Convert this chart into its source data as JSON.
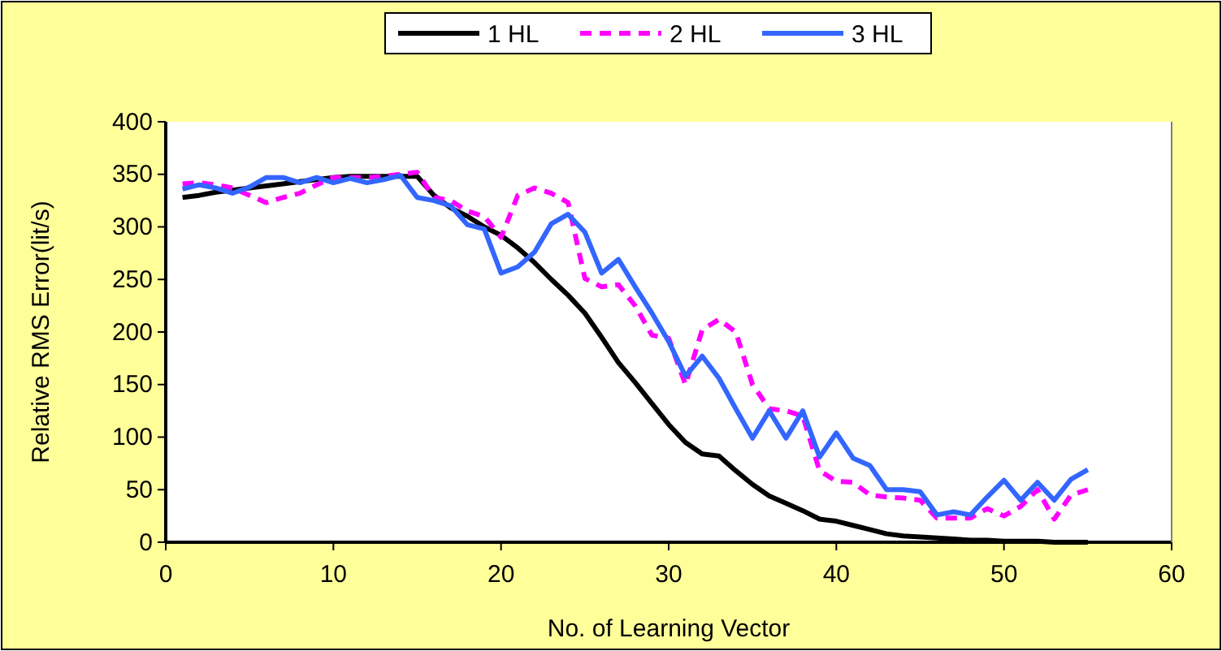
{
  "chart_data": {
    "type": "line",
    "xlabel": "No. of Learning Vector",
    "ylabel": "Relative RMS Error(lit/s)",
    "x": [
      1,
      2,
      3,
      4,
      5,
      6,
      7,
      8,
      9,
      10,
      11,
      12,
      13,
      14,
      15,
      16,
      17,
      18,
      19,
      20,
      21,
      22,
      23,
      24,
      25,
      26,
      27,
      28,
      29,
      30,
      31,
      32,
      33,
      34,
      35,
      36,
      37,
      38,
      39,
      40,
      41,
      42,
      43,
      44,
      45,
      46,
      47,
      48,
      49,
      50,
      51,
      52,
      53,
      54,
      55
    ],
    "series": [
      {
        "name": "1 HL",
        "color": "#000000",
        "line_style": "solid",
        "values": [
          328,
          330,
          333,
          335,
          337,
          339,
          341,
          343,
          345,
          347,
          348,
          348,
          348,
          348,
          348,
          330,
          318,
          310,
          300,
          292,
          280,
          266,
          250,
          235,
          218,
          195,
          171,
          152,
          132,
          112,
          95,
          84,
          82,
          68,
          55,
          44,
          37,
          30,
          22,
          20,
          16,
          12,
          8,
          6,
          5,
          4,
          3,
          2,
          2,
          1,
          1,
          1,
          0,
          0,
          0
        ]
      },
      {
        "name": "2 HL",
        "color": "#ff00ff",
        "line_style": "dashed",
        "values": [
          341,
          342,
          340,
          337,
          330,
          323,
          328,
          332,
          340,
          347,
          347,
          347,
          348,
          350,
          352,
          328,
          325,
          315,
          310,
          290,
          330,
          337,
          332,
          323,
          251,
          243,
          245,
          225,
          197,
          194,
          150,
          202,
          212,
          200,
          150,
          127,
          125,
          120,
          68,
          58,
          57,
          45,
          43,
          42,
          40,
          23,
          23,
          23,
          32,
          25,
          34,
          50,
          22,
          45,
          50
        ]
      },
      {
        "name": "3 HL",
        "color": "#3366ff",
        "line_style": "solid",
        "values": [
          336,
          340,
          337,
          332,
          338,
          347,
          347,
          342,
          347,
          342,
          346,
          342,
          345,
          349,
          328,
          325,
          320,
          302,
          298,
          256,
          262,
          276,
          303,
          312,
          295,
          256,
          269,
          243,
          218,
          191,
          158,
          177,
          156,
          127,
          99,
          125,
          99,
          125,
          81,
          104,
          80,
          73,
          50,
          50,
          48,
          26,
          29,
          26,
          43,
          59,
          40,
          57,
          40,
          60,
          69
        ]
      }
    ],
    "xlim": [
      0,
      60
    ],
    "xticks": [
      0,
      10,
      20,
      30,
      40,
      50,
      60
    ],
    "ylim": [
      0,
      400
    ],
    "yticks": [
      0,
      50,
      100,
      150,
      200,
      250,
      300,
      350,
      400
    ],
    "grid": false,
    "legend": "top",
    "marker": "none"
  }
}
